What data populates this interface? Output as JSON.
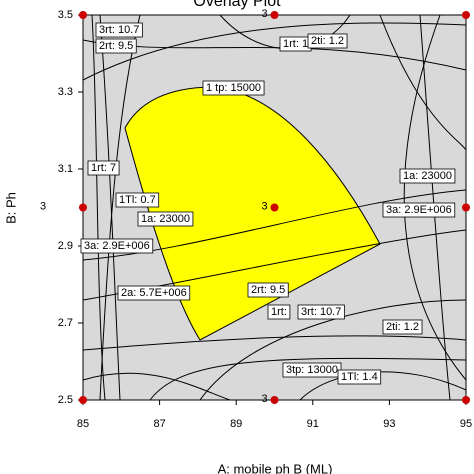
{
  "chart_data": {
    "type": "overlay",
    "title": "Overlay Plot",
    "x_label": "A: mobile ph B (ML)",
    "y_label": "B: Ph",
    "xlim": [
      85,
      95
    ],
    "xticks": [
      85,
      87,
      89,
      91,
      93,
      95
    ],
    "ylim": [
      2.5,
      3.5
    ],
    "yticks": [
      2.5,
      2.7,
      2.9,
      3.1,
      3.3,
      3.5
    ],
    "design_points": {
      "x": [
        85,
        85,
        85,
        90,
        90,
        90,
        95,
        95,
        95
      ],
      "y": [
        2.5,
        3,
        3.5,
        2.5,
        3,
        3.5,
        2.5,
        3,
        3.5
      ],
      "labels": [
        null,
        "3",
        null,
        "3",
        "3",
        "3",
        null,
        null,
        null
      ],
      "color": "#cc0000"
    },
    "annotations": [
      "3rt: 10.7",
      "2rt: 9.5",
      "1rt: 1",
      "2ti: 1.2",
      "1 tp: 15000",
      "1rt: 7",
      "1a: 23000",
      "1Tl: 0.7",
      "3a: 2.9E+006",
      "1a: 23000",
      "3a: 2.9E+006",
      "2a: 5.7E+006",
      "2rt: 9.5",
      "1rt:",
      "3rt: 10.7",
      "2ti: 1.2",
      "3tp: 13000",
      "1Tl: 1.4"
    ],
    "region_color": "#ffff00",
    "background": "#d9d9d9"
  }
}
